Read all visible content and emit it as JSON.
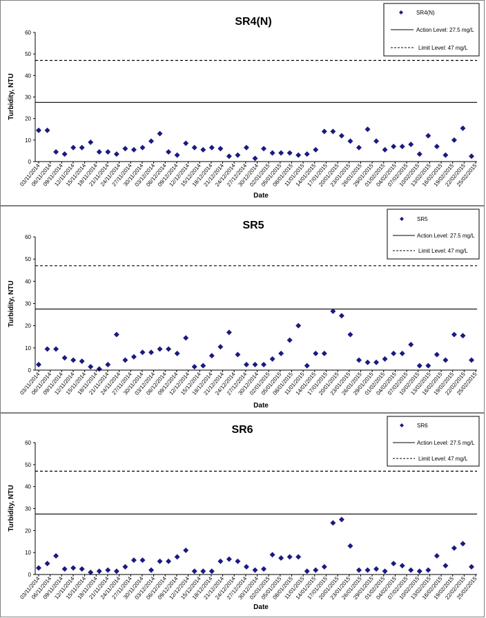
{
  "chart_data": [
    {
      "type": "scatter",
      "title": "SR4(N)",
      "xlabel": "Date",
      "ylabel": "Turbidity, NTU",
      "ylim": [
        0,
        60
      ],
      "yticks": [
        "0",
        "10",
        "20",
        "30",
        "40",
        "50",
        "60"
      ],
      "grid": false,
      "legend_position": "top-right",
      "x_tick_labels": [
        "03/11/2014",
        "06/11/2014",
        "09/11/2014",
        "12/11/2014",
        "15/11/2014",
        "18/11/2014",
        "21/11/2014",
        "24/11/2014",
        "27/11/2014",
        "30/11/2014",
        "03/12/2014",
        "06/12/2014",
        "09/12/2014",
        "12/12/2014",
        "15/12/2014",
        "18/12/2014",
        "21/12/2014",
        "24/12/2014",
        "27/12/2014",
        "30/12/2014",
        "02/01/2015",
        "05/01/2015",
        "08/01/2015",
        "11/01/2015",
        "14/01/2015",
        "17/01/2015",
        "20/01/2015",
        "23/01/2015",
        "26/01/2015",
        "29/01/2015",
        "01/02/2015",
        "04/02/2015",
        "07/02/2015",
        "10/02/2015",
        "13/02/2015",
        "16/02/2015",
        "19/02/2015",
        "22/02/2015",
        "25/02/2015"
      ],
      "series": [
        {
          "name": "SR4(N)",
          "color": "#1a1a80",
          "marker": "diamond",
          "values": [
            14.5,
            14.5,
            4.5,
            3.5,
            6.5,
            6.5,
            9,
            4.5,
            4.5,
            3.5,
            6,
            5.5,
            6.5,
            9.5,
            13,
            4.5,
            3,
            8.5,
            6.5,
            5.5,
            6.5,
            6,
            2.5,
            3,
            6.5,
            1.5,
            6,
            4,
            4,
            4,
            3,
            3.5,
            5.5,
            14,
            14,
            12,
            9.5,
            6.5,
            15,
            9.5,
            5.5,
            7,
            7,
            8,
            3.5,
            12,
            7,
            3,
            10,
            15.5,
            2.5
          ]
        },
        {
          "name": "Action Level: 27.5 mg/L",
          "type": "line",
          "value": 27.5,
          "style": "solid"
        },
        {
          "name": "Limit Level: 47 mg/L",
          "type": "line",
          "value": 47,
          "style": "dashed"
        }
      ]
    },
    {
      "type": "scatter",
      "title": "SR5",
      "xlabel": "Date",
      "ylabel": "Turbidity, NTU",
      "ylim": [
        0,
        60
      ],
      "yticks": [
        "0",
        "10",
        "20",
        "30",
        "40",
        "50",
        "60"
      ],
      "grid": false,
      "legend_position": "top-right",
      "x_tick_labels": [
        "03/11/2014",
        "06/11/2014",
        "09/11/2014",
        "12/11/2014",
        "15/11/2014",
        "18/11/2014",
        "21/11/2014",
        "24/11/2014",
        "27/11/2014",
        "30/11/2014",
        "03/12/2014",
        "06/12/2014",
        "09/12/2014",
        "12/12/2014",
        "15/12/2014",
        "18/12/2014",
        "21/12/2014",
        "24/12/2014",
        "27/12/2014",
        "30/12/2014",
        "02/01/2015",
        "05/01/2015",
        "08/01/2015",
        "11/01/2015",
        "14/01/2015",
        "17/01/2015",
        "20/01/2015",
        "23/01/2015",
        "26/01/2015",
        "29/01/2015",
        "01/02/2015",
        "04/02/2015",
        "07/02/2015",
        "10/02/2015",
        "13/02/2015",
        "16/02/2015",
        "19/02/2015",
        "22/02/2015",
        "25/02/2015"
      ],
      "series": [
        {
          "name": "SR5",
          "color": "#1a1a80",
          "marker": "diamond",
          "values": [
            2.5,
            9.5,
            9.5,
            5.5,
            4.5,
            4,
            1.5,
            0.5,
            2.5,
            16,
            4.5,
            6,
            8,
            8,
            9.5,
            9.5,
            7.5,
            14.5,
            1.5,
            2,
            6.5,
            10.5,
            17,
            7,
            2.5,
            2.5,
            2.5,
            5,
            7.5,
            13.5,
            20,
            2,
            7.5,
            7.5,
            26.5,
            24.5,
            16,
            4.5,
            3.5,
            3.5,
            5,
            7.5,
            7.5,
            11.5,
            2,
            2,
            7,
            4.5,
            16,
            15.5,
            4.5
          ]
        },
        {
          "name": "Action Level: 27.5 mg/L",
          "type": "line",
          "value": 27.5,
          "style": "solid"
        },
        {
          "name": "Limit Level: 47 mg/L",
          "type": "line",
          "value": 47,
          "style": "dashed"
        }
      ]
    },
    {
      "type": "scatter",
      "title": "SR6",
      "xlabel": "Date",
      "ylabel": "Turbidity, NTU",
      "ylim": [
        0,
        60
      ],
      "yticks": [
        "0",
        "10",
        "20",
        "30",
        "40",
        "50",
        "60"
      ],
      "grid": false,
      "legend_position": "top-right",
      "x_tick_labels": [
        "03/11/2014",
        "06/11/2014",
        "09/11/2014",
        "12/11/2014",
        "15/11/2014",
        "18/11/2014",
        "21/11/2014",
        "24/11/2014",
        "27/11/2014",
        "30/11/2014",
        "03/12/2014",
        "06/12/2014",
        "09/12/2014",
        "12/12/2014",
        "15/12/2014",
        "18/12/2014",
        "21/12/2014",
        "24/12/2014",
        "27/12/2014",
        "30/12/2014",
        "02/01/2015",
        "05/01/2015",
        "08/01/2015",
        "11/01/2015",
        "14/01/2015",
        "17/01/2015",
        "20/01/2015",
        "23/01/2015",
        "26/01/2015",
        "29/01/2015",
        "01/02/2015",
        "04/02/2015",
        "07/02/2015",
        "10/02/2015",
        "13/02/2015",
        "16/02/2015",
        "19/02/2015",
        "22/02/2015",
        "25/02/2015"
      ],
      "series": [
        {
          "name": "SR6",
          "color": "#1a1a80",
          "marker": "diamond",
          "values": [
            3,
            5,
            8.5,
            2.5,
            3,
            2.5,
            1,
            1.5,
            2,
            1.5,
            3.5,
            6.5,
            6.5,
            2,
            6,
            6,
            8,
            11,
            1.5,
            1.5,
            1.5,
            6,
            7,
            6,
            3.5,
            2,
            2.5,
            9,
            7.5,
            8,
            8,
            1.5,
            2,
            3.5,
            23.5,
            25,
            13,
            2,
            2,
            2.5,
            1.5,
            5,
            4,
            2,
            1.5,
            2,
            8.5,
            4,
            12,
            14,
            3.5
          ]
        },
        {
          "name": "Action Level: 27.5 mg/L",
          "type": "line",
          "value": 27.5,
          "style": "solid"
        },
        {
          "name": "Limit Level: 47 mg/L",
          "type": "line",
          "value": 47,
          "style": "dashed"
        }
      ]
    }
  ]
}
